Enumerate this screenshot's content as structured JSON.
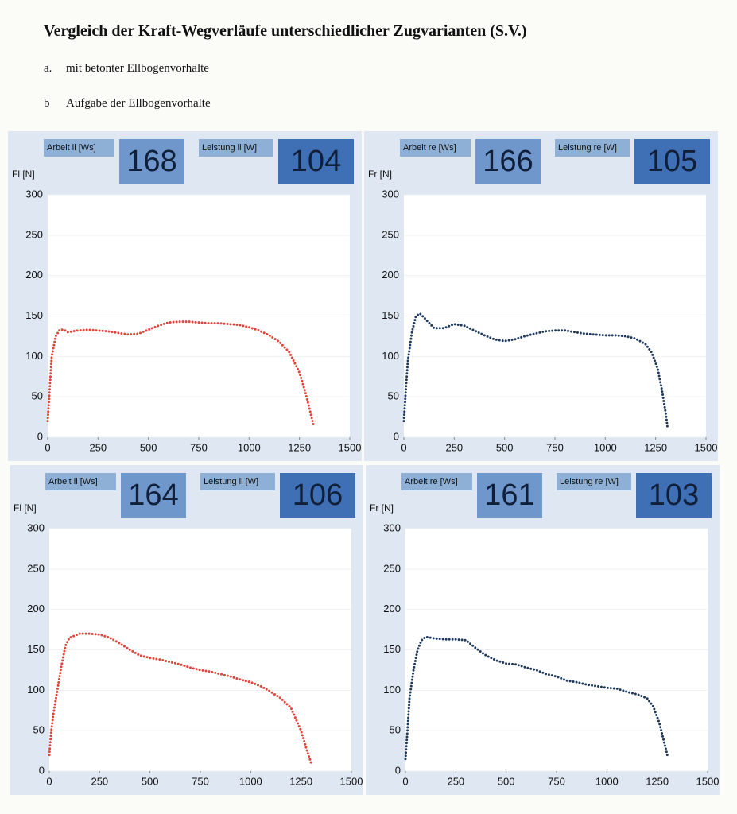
{
  "header": {
    "title": "Vergleich der Kraft-Wegverläufe unterschiedlicher Zugvarianten (S.V.)",
    "items": [
      {
        "marker": "a.",
        "text": "mit betonter Ellbogenvorhalte"
      },
      {
        "marker": "b",
        "text": "Aufgabe der Ellbogenvorhalte"
      }
    ]
  },
  "chart_data": [
    {
      "type": "line",
      "y_label": "Fl [N]",
      "color": "#e0443a",
      "indicators": [
        {
          "label": "Arbeit li [Ws]",
          "value": 168
        },
        {
          "label": "Leistung li [W]",
          "value": 104
        }
      ],
      "x": [
        0,
        10,
        20,
        40,
        60,
        80,
        100,
        150,
        200,
        250,
        300,
        350,
        400,
        450,
        500,
        550,
        600,
        650,
        700,
        750,
        800,
        850,
        900,
        950,
        1000,
        1050,
        1100,
        1150,
        1200,
        1250,
        1280,
        1300,
        1320
      ],
      "values": [
        20,
        60,
        100,
        125,
        133,
        133,
        130,
        132,
        133,
        132,
        131,
        129,
        127,
        128,
        133,
        138,
        142,
        143,
        143,
        142,
        141,
        141,
        140,
        139,
        136,
        132,
        126,
        118,
        105,
        80,
        55,
        35,
        15
      ],
      "xlim": [
        0,
        1500
      ],
      "xticks": [
        0,
        250,
        500,
        750,
        1000,
        1250,
        1500
      ],
      "ylim": [
        0,
        300
      ],
      "yticks": [
        0,
        50,
        100,
        150,
        200,
        250,
        300
      ]
    },
    {
      "type": "line",
      "y_label": "Fr [N]",
      "color": "#1f3a5c",
      "indicators": [
        {
          "label": "Arbeit re [Ws]",
          "value": 166
        },
        {
          "label": "Leistung re [W]",
          "value": 105
        }
      ],
      "x": [
        0,
        10,
        20,
        40,
        60,
        80,
        100,
        150,
        200,
        250,
        300,
        350,
        400,
        450,
        500,
        550,
        600,
        650,
        700,
        750,
        800,
        850,
        900,
        950,
        1000,
        1050,
        1100,
        1150,
        1200,
        1230,
        1260,
        1280,
        1300,
        1310
      ],
      "values": [
        20,
        60,
        95,
        130,
        150,
        153,
        148,
        135,
        135,
        140,
        138,
        132,
        126,
        121,
        119,
        121,
        125,
        128,
        131,
        132,
        132,
        130,
        128,
        127,
        126,
        126,
        125,
        122,
        115,
        105,
        85,
        60,
        30,
        10
      ],
      "xlim": [
        0,
        1500
      ],
      "xticks": [
        0,
        250,
        500,
        750,
        1000,
        1250,
        1500
      ],
      "ylim": [
        0,
        300
      ],
      "yticks": [
        0,
        50,
        100,
        150,
        200,
        250,
        300
      ]
    },
    {
      "type": "line",
      "y_label": "Fl [N]",
      "color": "#e0443a",
      "indicators": [
        {
          "label": "Arbeit li [Ws]",
          "value": 164
        },
        {
          "label": "Leistung li [W]",
          "value": 106
        }
      ],
      "x": [
        0,
        10,
        20,
        40,
        60,
        80,
        100,
        150,
        200,
        250,
        300,
        350,
        400,
        450,
        500,
        550,
        600,
        650,
        700,
        750,
        800,
        850,
        900,
        950,
        1000,
        1050,
        1100,
        1150,
        1200,
        1250,
        1280,
        1300
      ],
      "values": [
        20,
        50,
        70,
        100,
        130,
        155,
        165,
        170,
        170,
        169,
        165,
        158,
        150,
        143,
        140,
        138,
        135,
        132,
        128,
        125,
        123,
        120,
        117,
        113,
        110,
        105,
        98,
        90,
        78,
        50,
        25,
        10
      ],
      "xlim": [
        0,
        1500
      ],
      "xticks": [
        0,
        250,
        500,
        750,
        1000,
        1250,
        1500
      ],
      "ylim": [
        0,
        300
      ],
      "yticks": [
        0,
        50,
        100,
        150,
        200,
        250,
        300
      ]
    },
    {
      "type": "line",
      "y_label": "Fr [N]",
      "color": "#1f3a5c",
      "indicators": [
        {
          "label": "Arbeit re [Ws]",
          "value": 161
        },
        {
          "label": "Leistung re [W]",
          "value": 103
        }
      ],
      "x": [
        0,
        10,
        20,
        40,
        60,
        80,
        100,
        150,
        200,
        250,
        300,
        350,
        400,
        450,
        500,
        550,
        600,
        650,
        700,
        750,
        800,
        850,
        900,
        950,
        1000,
        1050,
        1100,
        1150,
        1200,
        1230,
        1260,
        1280,
        1300
      ],
      "values": [
        15,
        50,
        90,
        125,
        150,
        162,
        166,
        164,
        163,
        163,
        162,
        152,
        143,
        137,
        133,
        132,
        128,
        125,
        120,
        117,
        112,
        110,
        107,
        105,
        103,
        102,
        98,
        95,
        90,
        80,
        60,
        40,
        20
      ],
      "xlim": [
        0,
        1500
      ],
      "xticks": [
        0,
        250,
        500,
        750,
        1000,
        1250,
        1500
      ],
      "ylim": [
        0,
        300
      ],
      "yticks": [
        0,
        50,
        100,
        150,
        200,
        250,
        300
      ]
    }
  ]
}
